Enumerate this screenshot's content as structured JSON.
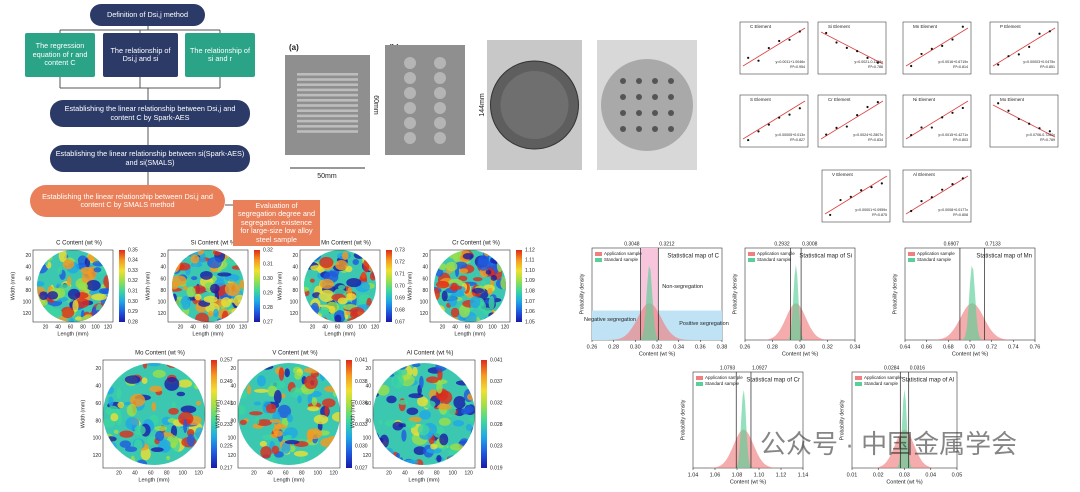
{
  "flowchart": {
    "nodes": [
      "Definition of Dsi,j method",
      "The regression equation of r and content C",
      "The relationship of Dsi,j and si",
      "The relationship of si and r",
      "Establishing the linear relationship between Dsi,j and content C by Spark-AES",
      "Establishing the linear relationship between si(Spark-AES) and si(SMALS)",
      "Establishing the linear relationship between Dsi,j and content C by SMALS method",
      "Evaluation of segregation degree and segregation existence for large-size low alloy steel sample"
    ]
  },
  "samples": {
    "labels": [
      "(a)",
      "(b)",
      "(c)",
      "(d)"
    ],
    "height_a": "60mm",
    "width_a": "50mm",
    "diameter_c": "144mm"
  },
  "regressions": [
    {
      "element": "C Element",
      "equation": "y=0.0011+1.0046x",
      "r2": "R²=0.954"
    },
    {
      "element": "Si Element",
      "equation": "y=0.0021-0.1158x",
      "r2": "R²=0.786"
    },
    {
      "element": "Mn Element",
      "equation": "y=0.0016+0.6719x",
      "r2": "R²=0.814"
    },
    {
      "element": "P Element",
      "equation": "y=0.00003+0.0475x",
      "r2": "R²=0.851"
    },
    {
      "element": "S Element",
      "equation": "y=0.00005+0.013x",
      "r2": "R²=0.827"
    },
    {
      "element": "Cr Element",
      "equation": "y=0.0024+0.2807x",
      "r2": "R²=0.834"
    },
    {
      "element": "Ni Element",
      "equation": "y=0.0015+0.4271x",
      "r2": "R²=0.803"
    },
    {
      "element": "Mo Element",
      "equation": "y=0.0706-0.7260x",
      "r2": "R²=0.789"
    },
    {
      "element": "V Element",
      "equation": "y=0.00001+0.0959x",
      "r2": "R²=0.875"
    },
    {
      "element": "Al Element",
      "equation": "y=0.0008+0.0177x",
      "r2": "R²=0.808"
    }
  ],
  "heatmaps": {
    "xlabel": "Length (mm)",
    "ylabel": "Width (mm)",
    "xticks": [
      "20",
      "40",
      "60",
      "80",
      "100",
      "120"
    ],
    "yticks": [
      "20",
      "40",
      "60",
      "80",
      "100",
      "120"
    ],
    "maps": [
      {
        "title": "C Content (wt %)",
        "colorbar": [
          "0.35",
          "0.34",
          "0.33",
          "0.32",
          "0.31",
          "0.30",
          "0.29",
          "0.28"
        ]
      },
      {
        "title": "Si Content (wt %)",
        "colorbar": [
          "0.32",
          "0.31",
          "0.30",
          "0.29",
          "0.28",
          "0.27"
        ]
      },
      {
        "title": "Mn Content (wt %)",
        "colorbar": [
          "0.73",
          "0.72",
          "0.71",
          "0.70",
          "0.69",
          "0.68",
          "0.67"
        ]
      },
      {
        "title": "Cr Content (wt %)",
        "colorbar": [
          "1.12",
          "1.11",
          "1.10",
          "1.09",
          "1.08",
          "1.07",
          "1.06",
          "1.05"
        ]
      },
      {
        "title": "Mo Content (wt %)",
        "colorbar": [
          "0.257",
          "0.249",
          "0.241",
          "0.233",
          "0.225",
          "0.217"
        ]
      },
      {
        "title": "V Content (wt %)",
        "colorbar": [
          "0.041",
          "0.038",
          "0.036",
          "0.033",
          "0.030",
          "0.027"
        ]
      },
      {
        "title": "Al Content (wt %)",
        "colorbar": [
          "0.041",
          "0.037",
          "0.032",
          "0.028",
          "0.023",
          "0.019"
        ]
      }
    ]
  },
  "distributions": {
    "ylabel": "Probability density",
    "xlabel": "Content (wt %)",
    "legend": [
      "Application sample",
      "Standard sample"
    ],
    "annotations": [
      "Non-segregation",
      "Negative segregation",
      "Positive segregation"
    ],
    "plots": [
      {
        "title": "Statistical map of C",
        "markers": [
          0.3048,
          0.3212
        ],
        "xticks": [
          0.26,
          0.28,
          {
            "value": 0.3,
            "label": "0.30"
          },
          0.32,
          0.34,
          0.36,
          0.38
        ]
      },
      {
        "title": "Statistical map of Si",
        "markers": [
          0.2932,
          0.3008
        ],
        "xticks": [
          0.26,
          0.28,
          {
            "value": 0.3,
            "label": "0.30"
          },
          0.32,
          0.34
        ]
      },
      {
        "title": "Statistical map of Mn",
        "markers": [
          0.6907,
          0.7133
        ],
        "xticks": [
          0.64,
          0.66,
          0.68,
          {
            "value": 0.7,
            "label": "0.70"
          },
          0.72,
          0.74,
          0.76
        ]
      },
      {
        "title": "Statistical map of Cr",
        "markers": [
          1.0793,
          1.0927
        ],
        "xticks": [
          1.04,
          1.06,
          1.08,
          {
            "value": 1.1,
            "label": "1.10"
          },
          1.12,
          1.14
        ]
      },
      {
        "title": "Statistical map of Al",
        "markers": [
          0.0284,
          0.0316
        ],
        "xticks": [
          0.01,
          0.02,
          0.03,
          0.04,
          0.05
        ]
      }
    ]
  },
  "watermark": "公众号 · 中国金属学会"
}
